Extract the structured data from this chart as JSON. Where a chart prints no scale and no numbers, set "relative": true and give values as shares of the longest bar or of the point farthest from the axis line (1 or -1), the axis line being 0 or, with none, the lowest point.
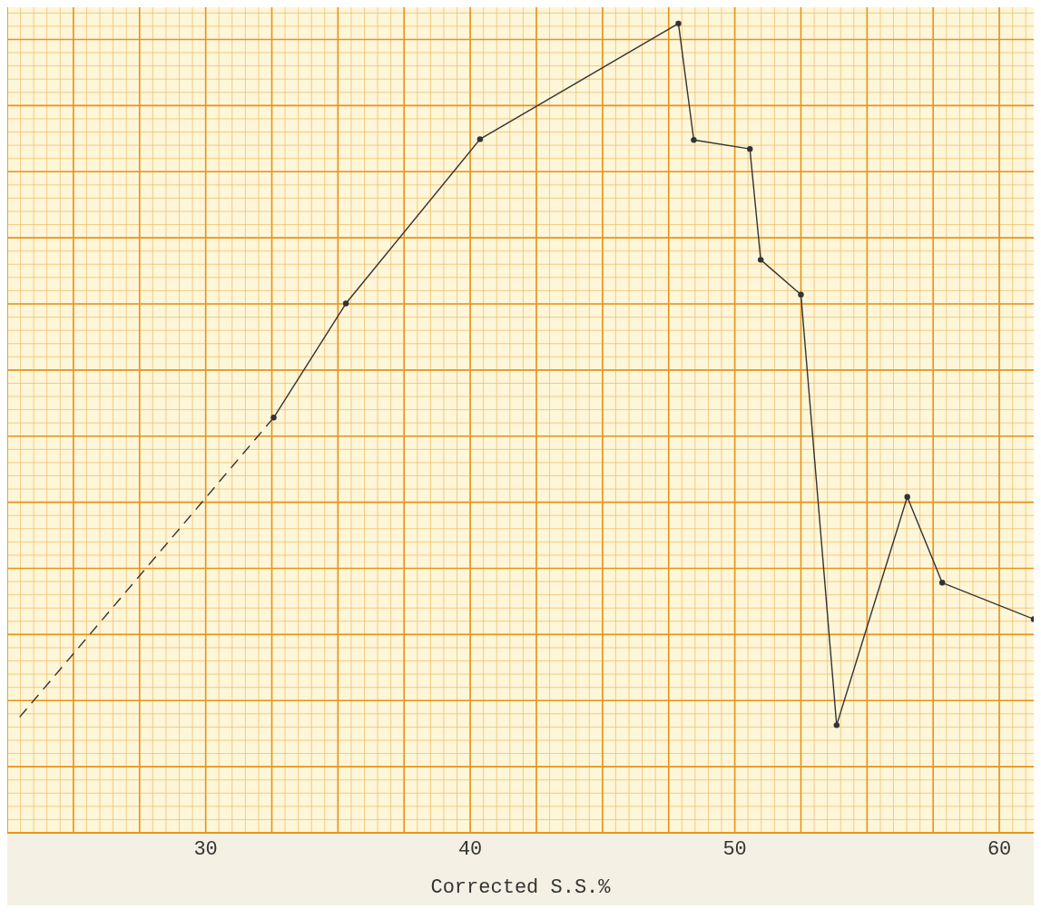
{
  "chart_data": {
    "type": "line",
    "xlabel": "Corrected S.S.%",
    "relative": true,
    "xlim": [
      22.5,
      61.3
    ],
    "xticks": [
      30,
      40,
      50,
      60
    ],
    "grid": true,
    "series": [
      {
        "color": "#333333",
        "marker": "circle",
        "line_style": "solid",
        "x": [
          32.57,
          35.3,
          40.37,
          47.87,
          48.45,
          50.57,
          50.98,
          52.5,
          53.85,
          56.52,
          57.84,
          61.3
        ],
        "values": [
          0.513,
          0.654,
          0.857,
          1,
          0.856,
          0.845,
          0.708,
          0.665,
          0.133,
          0.415,
          0.309,
          0.264
        ]
      },
      {
        "color": "#333333",
        "marker": "none",
        "line_style": "dashed",
        "x": [
          22.97,
          32.57
        ],
        "values": [
          0.143,
          0.513
        ]
      }
    ]
  }
}
